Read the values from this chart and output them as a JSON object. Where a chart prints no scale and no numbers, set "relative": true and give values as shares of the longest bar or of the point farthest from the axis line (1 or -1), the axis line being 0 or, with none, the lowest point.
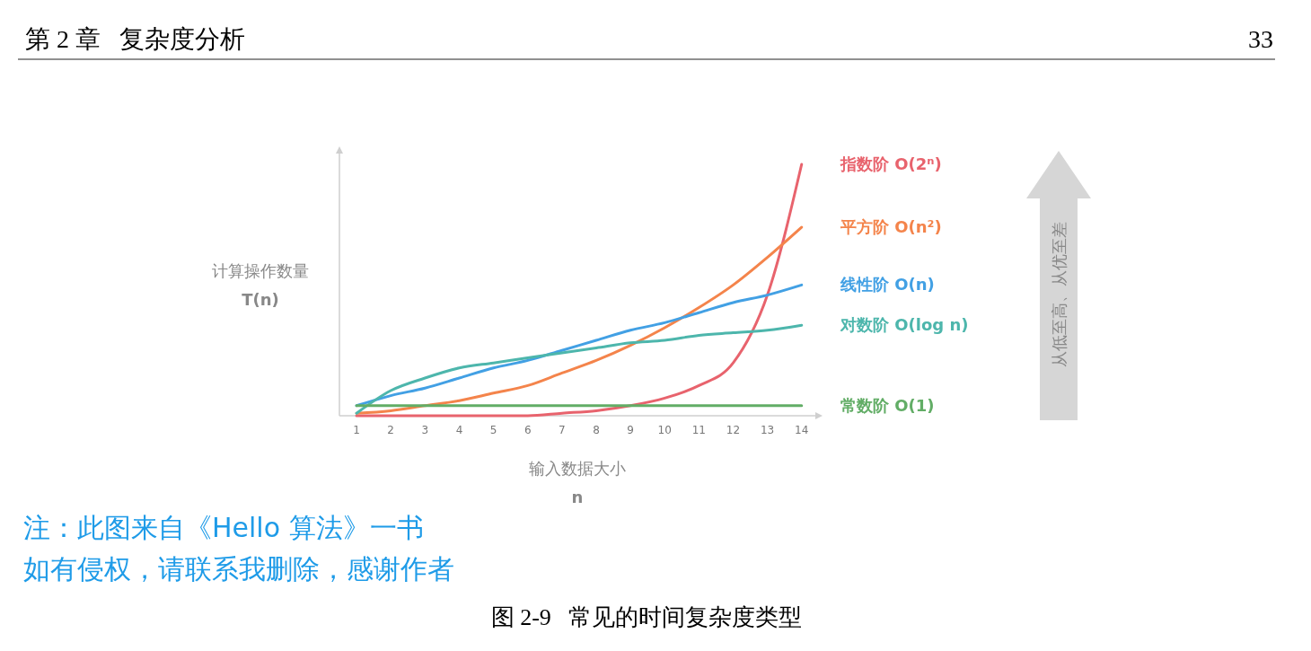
{
  "chart_data": {
    "type": "line",
    "relative": true,
    "xlabel": "输入数据大小\nn",
    "ylabel": "计算操作数量\nT(n)",
    "x": [
      1,
      2,
      3,
      4,
      5,
      6,
      7,
      8,
      9,
      10,
      11,
      12,
      13,
      14
    ],
    "xlim": [
      0.5,
      14.4
    ],
    "xticks": [
      1,
      2,
      3,
      4,
      5,
      6,
      7,
      8,
      9,
      10,
      11,
      12,
      13,
      14
    ],
    "series": [
      {
        "name": "指数阶 O(2ⁿ)",
        "color": "#e8636d",
        "values": [
          0,
          0,
          0,
          0,
          0,
          0,
          0.01,
          0.02,
          0.04,
          0.07,
          0.12,
          0.21,
          0.48,
          1
        ]
      },
      {
        "name": "平方阶 O(n²)",
        "color": "#f4844b",
        "values": [
          0.01,
          0.02,
          0.04,
          0.06,
          0.09,
          0.12,
          0.17,
          0.22,
          0.28,
          0.35,
          0.43,
          0.52,
          0.63,
          0.75
        ]
      },
      {
        "name": "线性阶 O(n)",
        "color": "#42a0e4",
        "values": [
          0.04,
          0.08,
          0.11,
          0.15,
          0.19,
          0.22,
          0.26,
          0.3,
          0.34,
          0.37,
          0.41,
          0.45,
          0.48,
          0.52
        ]
      },
      {
        "name": "对数阶 O(log n)",
        "color": "#4db6ac",
        "values": [
          0.01,
          0.1,
          0.15,
          0.19,
          0.21,
          0.23,
          0.25,
          0.27,
          0.29,
          0.3,
          0.32,
          0.33,
          0.34,
          0.36
        ]
      },
      {
        "name": "常数阶 O(1)",
        "color": "#62ad66",
        "values": [
          0.04,
          0.04,
          0.04,
          0.04,
          0.04,
          0.04,
          0.04,
          0.04,
          0.04,
          0.04,
          0.04,
          0.04,
          0.04,
          0.04
        ]
      }
    ],
    "legend": "right",
    "marker": "none",
    "line_style": "solid",
    "annotations": [
      "第 2 章   复杂度分析",
      "33",
      "从低至高、从优至差",
      "注：此图来自《Hello 算法》一书",
      "如有侵权，请联系我删除，感谢作者",
      "图 2-9   常见的时间复杂度类型"
    ]
  }
}
